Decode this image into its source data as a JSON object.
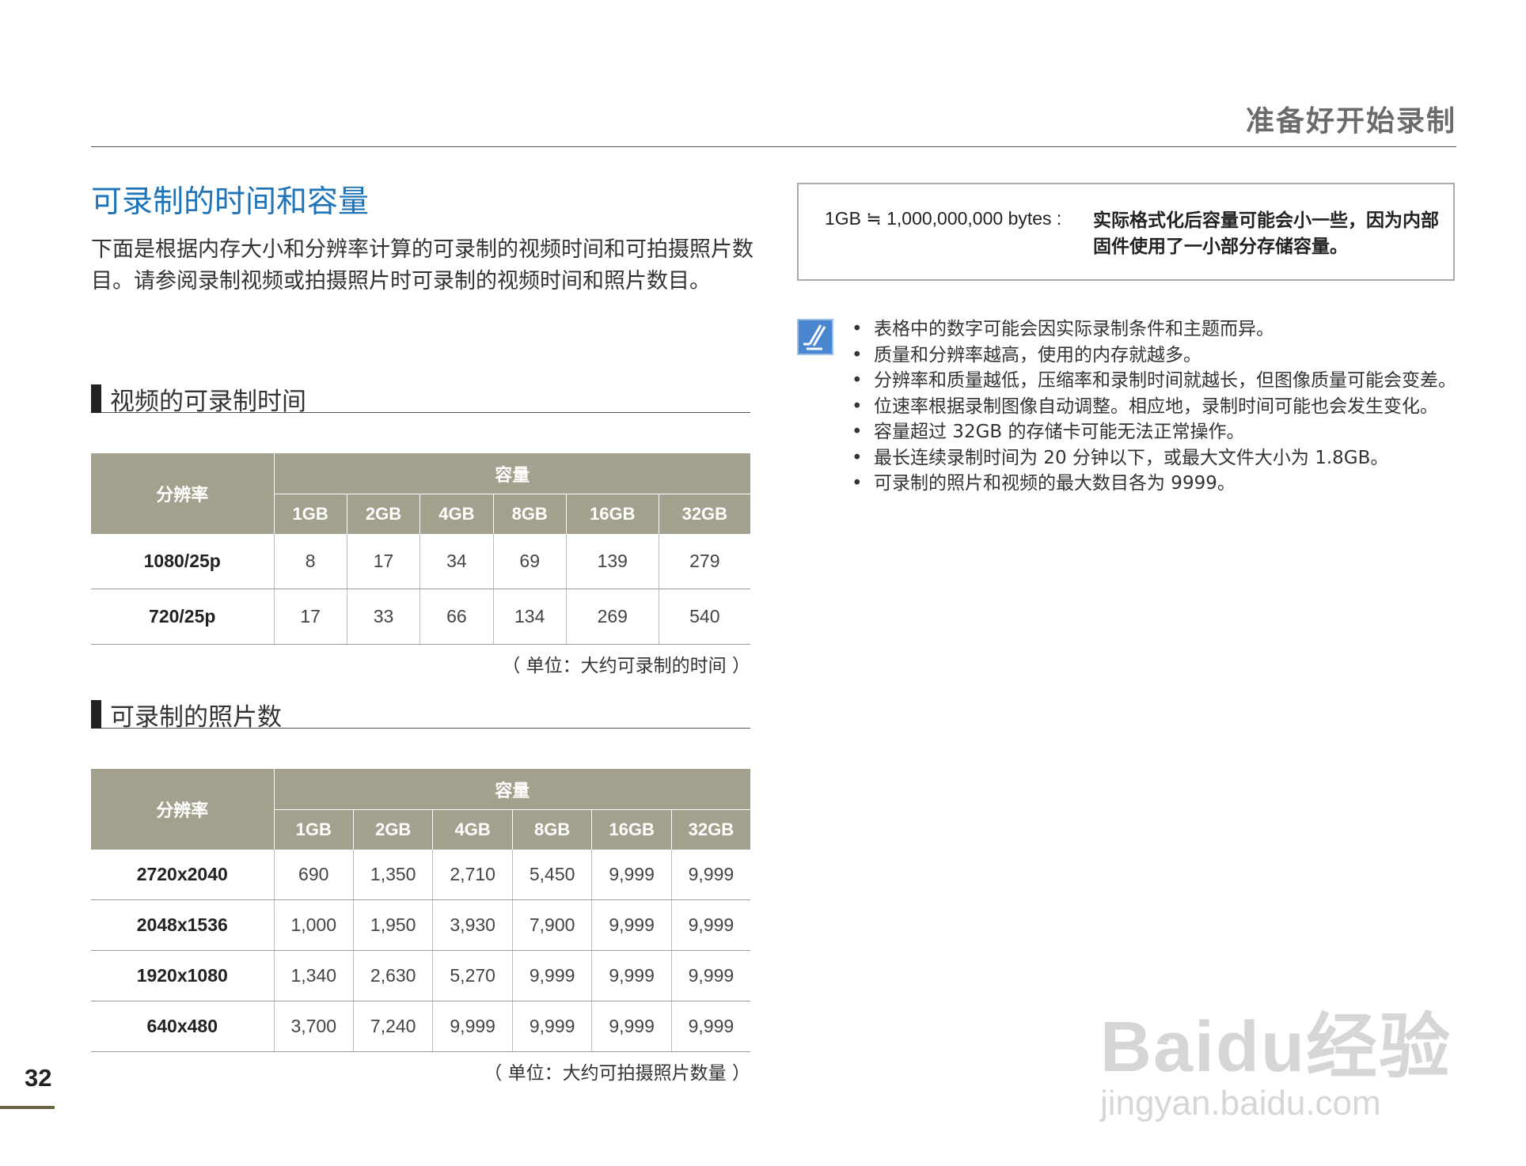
{
  "chapter_title": "准备好开始录制",
  "section_title": "可录制的时间和容量",
  "intro": "下面是根据内存大小和分辨率计算的可录制的视频时间和可拍摄照片数目。请参阅录制视频或拍摄照片时可录制的视频时间和照片数目。",
  "video": {
    "heading": "视频的可录制时间",
    "res_label": "分辨率",
    "cap_label": "容量",
    "columns": [
      "1GB",
      "2GB",
      "4GB",
      "8GB",
      "16GB",
      "32GB"
    ],
    "rows": [
      {
        "res": "1080/25p",
        "values": [
          "8",
          "17",
          "34",
          "69",
          "139",
          "279"
        ]
      },
      {
        "res": "720/25p",
        "values": [
          "17",
          "33",
          "66",
          "134",
          "269",
          "540"
        ]
      }
    ],
    "caption": "（ 单位：大约可录制的时间 ）"
  },
  "photo": {
    "heading": "可录制的照片数",
    "res_label": "分辨率",
    "cap_label": "容量",
    "columns": [
      "1GB",
      "2GB",
      "4GB",
      "8GB",
      "16GB",
      "32GB"
    ],
    "rows": [
      {
        "res": "2720x2040",
        "values": [
          "690",
          "1,350",
          "2,710",
          "5,450",
          "9,999",
          "9,999"
        ]
      },
      {
        "res": "2048x1536",
        "values": [
          "1,000",
          "1,950",
          "3,930",
          "7,900",
          "9,999",
          "9,999"
        ]
      },
      {
        "res": "1920x1080",
        "values": [
          "1,340",
          "2,630",
          "5,270",
          "9,999",
          "9,999",
          "9,999"
        ]
      },
      {
        "res": "640x480",
        "values": [
          "3,700",
          "7,240",
          "9,999",
          "9,999",
          "9,999",
          "9,999"
        ]
      }
    ],
    "caption": "（ 单位：大约可拍摄照片数量 ）"
  },
  "note_box": {
    "key": "1GB ≒ 1,000,000,000 bytes :",
    "value": "实际格式化后容量可能会小一些，因为内部固件使用了一小部分存储容量。"
  },
  "note_icon": "memo-pen-icon",
  "bullets": [
    "表格中的数字可能会因实际录制条件和主题而异。",
    "质量和分辨率越高，使用的内存就越多。",
    "分辨率和质量越低，压缩率和录制时间就越长，但图像质量可能会变差。",
    "位速率根据录制图像自动调整。相应地，录制时间可能也会发生变化。",
    "容量超过 32GB 的存储卡可能无法正常操作。",
    "最长连续录制时间为 20 分钟以下，或最大文件大小为 1.8GB。",
    "可录制的照片和视频的最大数目各为 9999。"
  ],
  "page_number": "32",
  "watermark": {
    "logo": "Baidu经验",
    "url": "jingyan.baidu.com"
  },
  "colors": {
    "title": "#1f73b7",
    "table_header": "#a3a08e",
    "note_icon": "#4a86d0"
  }
}
